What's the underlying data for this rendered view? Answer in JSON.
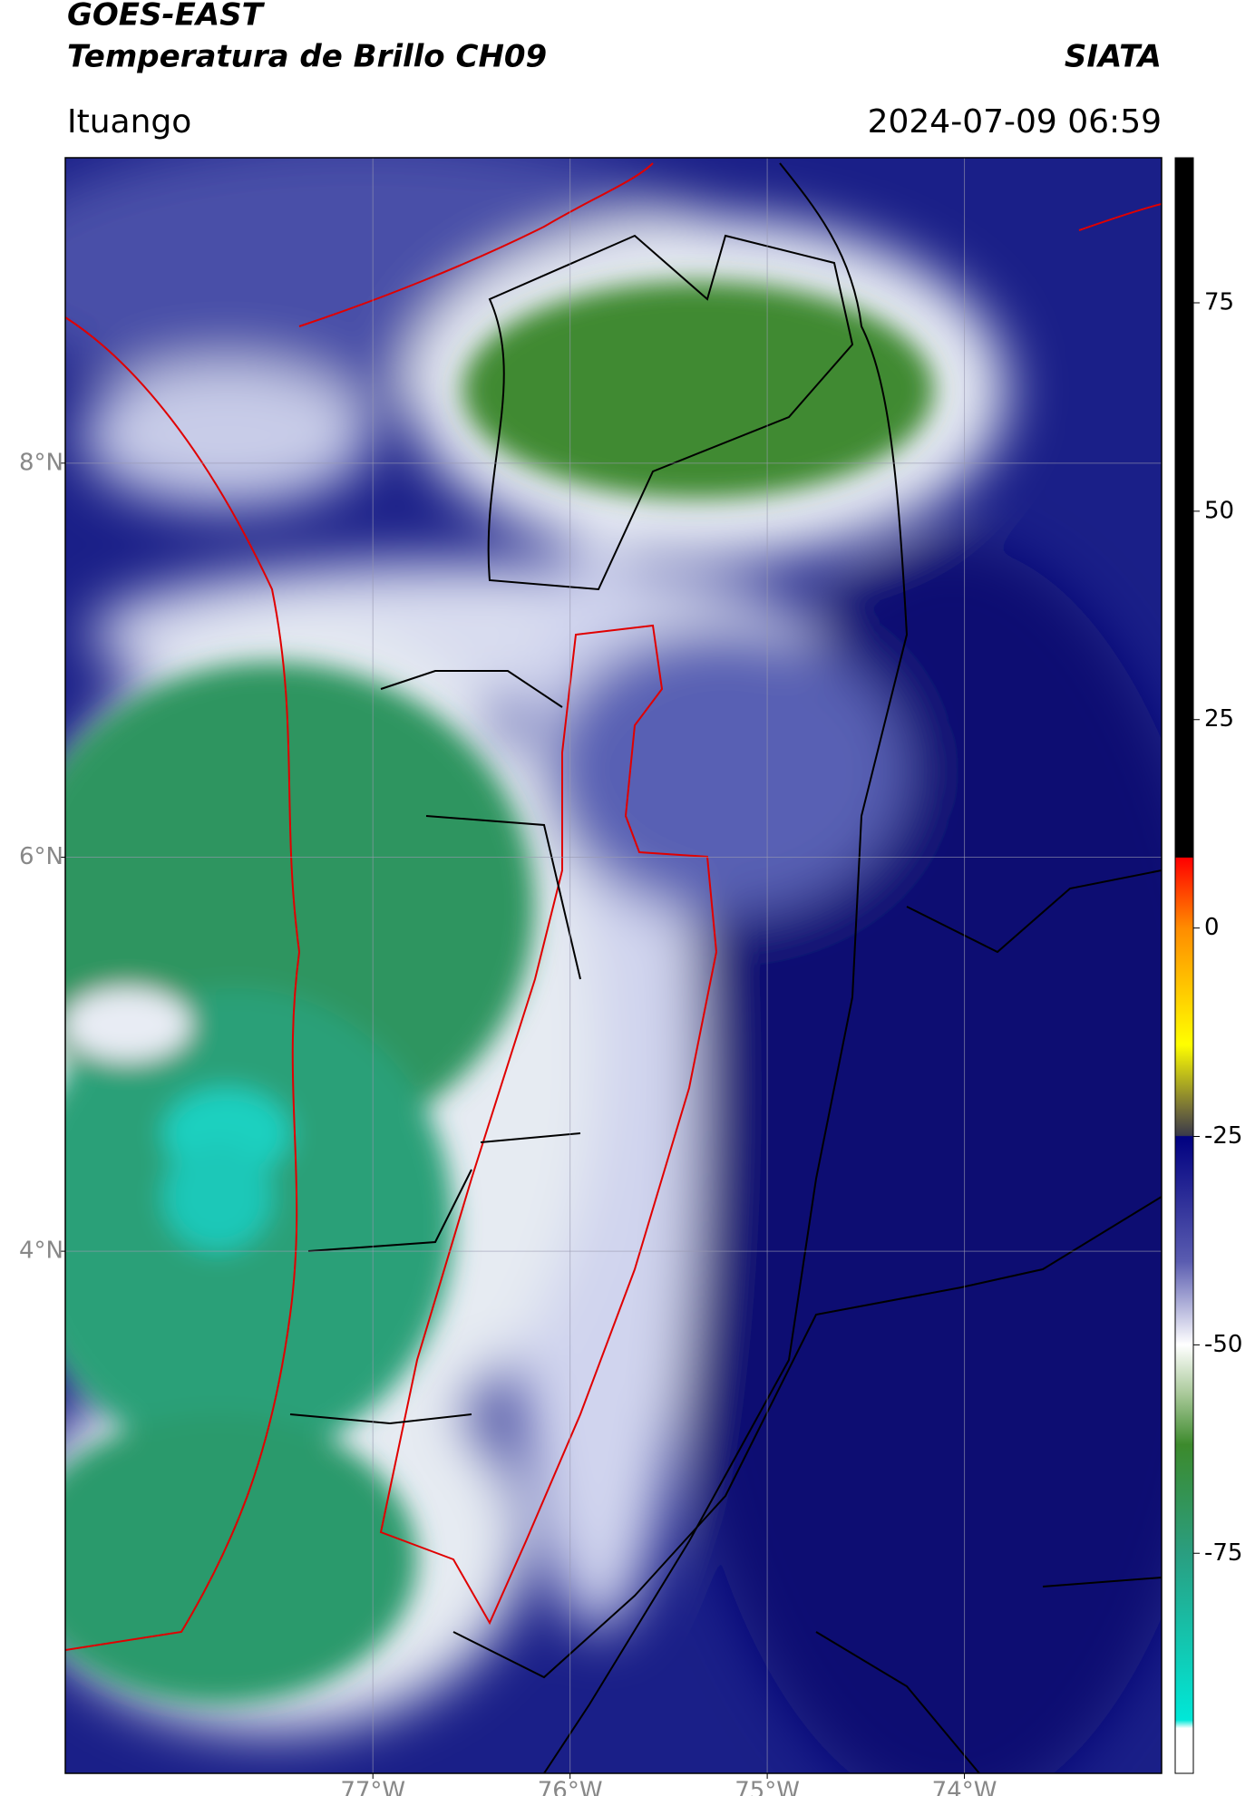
{
  "chart_data": {
    "type": "map",
    "title": "GOES-EAST",
    "subtitle": "Temperatura de Brillo CH09",
    "source": "SIATA",
    "location": "Ituango",
    "datetime": "2024-07-09 06:59",
    "xlim": [
      -78.56,
      -73.0
    ],
    "ylim": [
      1.35,
      9.55
    ],
    "xticks": [
      {
        "value": -77,
        "label": "77°W"
      },
      {
        "value": -76,
        "label": "76°W"
      },
      {
        "value": -75,
        "label": "75°W"
      },
      {
        "value": -74,
        "label": "74°W"
      }
    ],
    "yticks": [
      {
        "value": 8,
        "label": "8°N"
      },
      {
        "value": 6,
        "label": "6°N"
      },
      {
        "value": 4,
        "label": "4°N"
      }
    ],
    "grid": true,
    "colorbar": {
      "lim": [
        -101.4,
        92.4
      ],
      "ticks": [
        75,
        50,
        25,
        0,
        -25,
        -50,
        -75
      ],
      "colormap": [
        {
          "value": 92.4,
          "color": "#000000"
        },
        {
          "value": 8.5,
          "color": "#000000"
        },
        {
          "value": 8.4,
          "color": "#ff0000"
        },
        {
          "value": 0,
          "color": "#ff8c00"
        },
        {
          "value": -14,
          "color": "#ffff00"
        },
        {
          "value": -22,
          "color": "#6f6a3a"
        },
        {
          "value": -24.9,
          "color": "#3a3a4a"
        },
        {
          "value": -25,
          "color": "#000080"
        },
        {
          "value": -40,
          "color": "#5a5cb0"
        },
        {
          "value": -50,
          "color": "#ffffff"
        },
        {
          "value": -56,
          "color": "#a8c898"
        },
        {
          "value": -62,
          "color": "#3c8a2c"
        },
        {
          "value": -75,
          "color": "#2a9e80"
        },
        {
          "value": -95,
          "color": "#00e8d8"
        },
        {
          "value": -96,
          "color": "#ffffff"
        },
        {
          "value": -101.4,
          "color": "#ffffff"
        }
      ]
    }
  }
}
